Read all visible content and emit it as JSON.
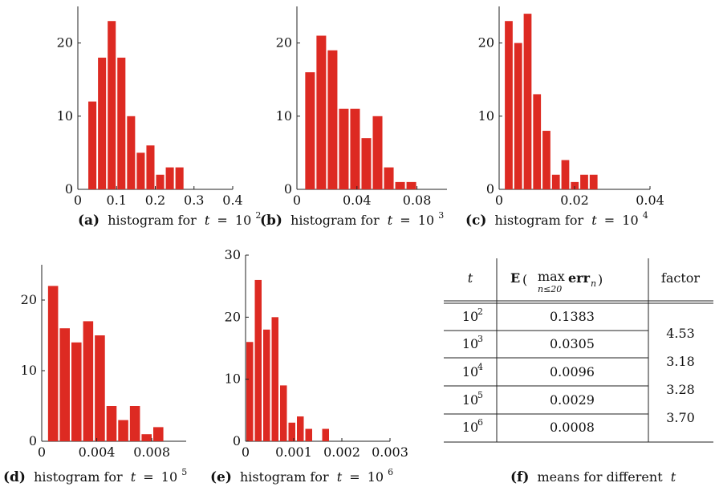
{
  "colors": {
    "bar": "#dd2a22",
    "axis": "#222222",
    "text": "#111111"
  },
  "chart_data": [
    {
      "type": "bar",
      "panel": "(a)",
      "caption": "histogram for",
      "caption_var": "t",
      "caption_value": "10",
      "caption_exp": "2",
      "bin_start": 0.025,
      "bin_width": 0.025,
      "values": [
        12,
        18,
        23,
        18,
        10,
        5,
        6,
        2,
        3,
        3
      ],
      "xlim": [
        0,
        0.4
      ],
      "ylim": [
        0,
        25
      ],
      "xticks": [
        "0",
        "0.1",
        "0.2",
        "0.3",
        "0.4"
      ],
      "xtick_vals": [
        0,
        0.1,
        0.2,
        0.3,
        0.4
      ],
      "yticks": [
        "0",
        "10",
        "20"
      ],
      "ytick_vals": [
        0,
        10,
        20
      ]
    },
    {
      "type": "bar",
      "panel": "(b)",
      "caption": "histogram for",
      "caption_var": "t",
      "caption_value": "10",
      "caption_exp": "3",
      "bin_start": 0.005,
      "bin_width": 0.0075,
      "values": [
        16,
        21,
        19,
        11,
        11,
        7,
        10,
        3,
        1,
        1
      ],
      "xlim": [
        0,
        0.1
      ],
      "ylim": [
        0,
        25
      ],
      "xticks": [
        "0",
        "0.04",
        "0.08"
      ],
      "xtick_vals": [
        0,
        0.04,
        0.08
      ],
      "yticks": [
        "0",
        "10",
        "20"
      ],
      "ytick_vals": [
        0,
        10,
        20
      ]
    },
    {
      "type": "bar",
      "panel": "(c)",
      "caption": "histogram for",
      "caption_var": "t",
      "caption_value": "10",
      "caption_exp": "4",
      "bin_start": 0.0013,
      "bin_width": 0.0025,
      "values": [
        23,
        20,
        24,
        13,
        8,
        2,
        4,
        1,
        2,
        2
      ],
      "xlim": [
        0,
        0.04
      ],
      "ylim": [
        0,
        25
      ],
      "xticks": [
        "0",
        "0.02",
        "0.04"
      ],
      "xtick_vals": [
        0,
        0.02,
        0.04
      ],
      "yticks": [
        "0",
        "10",
        "20"
      ],
      "ytick_vals": [
        0,
        10,
        20
      ]
    },
    {
      "type": "bar",
      "panel": "(d)",
      "caption": "histogram for",
      "caption_var": "t",
      "caption_value": "10",
      "caption_exp": "5",
      "bin_start": 0.0004,
      "bin_width": 0.00085,
      "values": [
        22,
        16,
        14,
        17,
        15,
        5,
        3,
        5,
        1,
        2
      ],
      "xlim": [
        0,
        0.0105
      ],
      "ylim": [
        0,
        25
      ],
      "xticks": [
        "0",
        "0.004",
        "0.008"
      ],
      "xtick_vals": [
        0,
        0.004,
        0.008
      ],
      "yticks": [
        "0",
        "10",
        "20"
      ],
      "ytick_vals": [
        0,
        10,
        20
      ]
    },
    {
      "type": "bar",
      "panel": "(e)",
      "caption": "histogram for",
      "caption_var": "t",
      "caption_value": "10",
      "caption_exp": "6",
      "bin_start": 0.0,
      "bin_width": 0.000175,
      "values": [
        16,
        26,
        18,
        20,
        9,
        3,
        4,
        2,
        0,
        2
      ],
      "xlim": [
        0,
        0.003
      ],
      "ylim": [
        0,
        30
      ],
      "xticks": [
        "0",
        "0.001",
        "0.002",
        "0.003"
      ],
      "xtick_vals": [
        0,
        0.001,
        0.002,
        0.003
      ],
      "yticks": [
        "0",
        "10",
        "20",
        "30"
      ],
      "ytick_vals": [
        0,
        10,
        20,
        30
      ]
    },
    {
      "type": "table",
      "panel": "(f)",
      "caption": "means for different",
      "caption_var": "t",
      "headers": {
        "t": "t",
        "mean_E": "E",
        "mean_max": "max",
        "mean_sub": "n≤20",
        "mean_err": "err",
        "mean_errsub": "n",
        "factor": "factor"
      },
      "rows": [
        {
          "t": "10",
          "t_exp": "2",
          "mean": "0.1383"
        },
        {
          "t": "10",
          "t_exp": "3",
          "mean": "0.0305"
        },
        {
          "t": "10",
          "t_exp": "4",
          "mean": "0.0096"
        },
        {
          "t": "10",
          "t_exp": "5",
          "mean": "0.0029"
        },
        {
          "t": "10",
          "t_exp": "6",
          "mean": "0.0008"
        }
      ],
      "factors": [
        "4.53",
        "3.18",
        "3.28",
        "3.70"
      ]
    }
  ]
}
